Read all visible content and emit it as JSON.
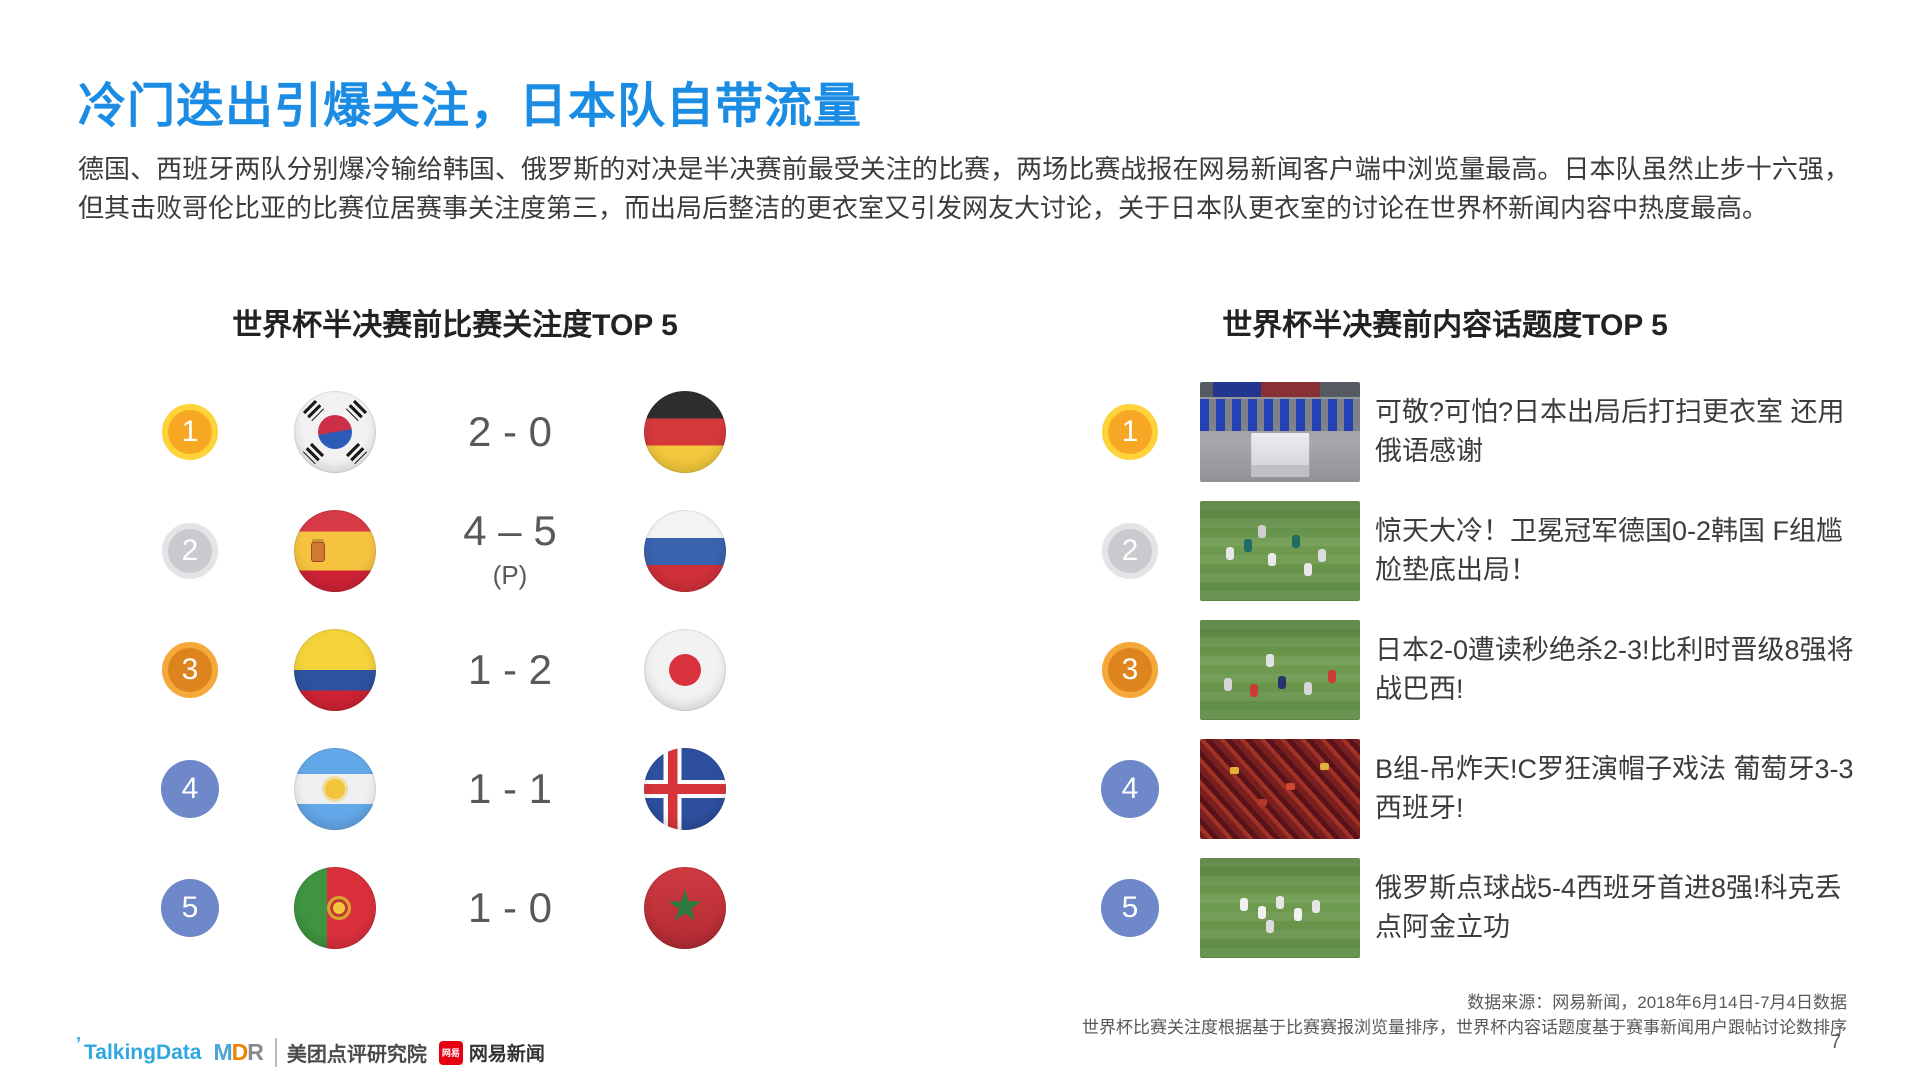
{
  "slide": {
    "title": "冷门迭出引爆关注，日本队自带流量",
    "paragraph": "德国、西班牙两队分别爆冷输给韩国、俄罗斯的对决是半决赛前最受关注的比赛，两场比赛战报在网易新闻客户端中浏览量最高。日本队虽然止步十六强，但其击败哥伦比亚的比赛位居赛事关注度第三，而出局后整洁的更衣室又引发网友大讨论，关于日本队更衣室的讨论在世界杯新闻内容中热度最高。",
    "page_number": "7"
  },
  "left_panel": {
    "title": "世界杯半决赛前比赛关注度TOP 5",
    "rows": [
      {
        "rank": "1",
        "medal": "gold",
        "home_flag": "south-korea",
        "score": "2 - 0",
        "note": "",
        "away_flag": "germany"
      },
      {
        "rank": "2",
        "medal": "silver",
        "home_flag": "spain",
        "score": "4 – 5",
        "note": "(P)",
        "away_flag": "russia"
      },
      {
        "rank": "3",
        "medal": "bronze",
        "home_flag": "colombia",
        "score": "1 - 2",
        "note": "",
        "away_flag": "japan"
      },
      {
        "rank": "4",
        "medal": "plain",
        "home_flag": "argentina",
        "score": "1 - 1",
        "note": "",
        "away_flag": "iceland"
      },
      {
        "rank": "5",
        "medal": "plain",
        "home_flag": "portugal",
        "score": "1 - 0",
        "note": "",
        "away_flag": "morocco"
      }
    ]
  },
  "right_panel": {
    "title": "世界杯半决赛前内容话题度TOP 5",
    "rows": [
      {
        "rank": "1",
        "medal": "gold",
        "thumbnail": "japan-locker-room",
        "headline": "可敬?可怕?日本出局后打扫更衣室 还用俄语感谢"
      },
      {
        "rank": "2",
        "medal": "silver",
        "thumbnail": "germany-korea-match",
        "headline": "惊天大冷！卫冕冠军德国0-2韩国 F组尴尬垫底出局！"
      },
      {
        "rank": "3",
        "medal": "bronze",
        "thumbnail": "japan-belgium-match",
        "headline": "日本2-0遭读秒绝杀2-3!比利时晋级8强将战巴西!"
      },
      {
        "rank": "4",
        "medal": "plain",
        "thumbnail": "portugal-spain-fans",
        "headline": "B组-吊炸天!C罗狂演帽子戏法 葡萄牙3-3西班牙!"
      },
      {
        "rank": "5",
        "medal": "plain",
        "thumbnail": "russia-spain-match",
        "headline": "俄罗斯点球战5-4西班牙首进8强!科克丢点阿金立功"
      }
    ]
  },
  "footer": {
    "source_line1": "数据来源：网易新闻，2018年6月14日-7月4日数据",
    "source_line2": "世界杯比赛关注度根据基于比赛赛报浏览量排序，世界杯内容话题度基于赛事新闻用户跟帖讨论数排序",
    "logos": {
      "talkingdata": "TalkingData",
      "mdr_m": "M",
      "mdr_d": "D",
      "mdr_r": "R",
      "meituan": "美团点评研究院",
      "netease_badge": "网易",
      "netease": "网易新闻"
    }
  },
  "colors": {
    "title-blue": "#1B8CE4",
    "medal-gold": "#F7A723",
    "medal-gold-ring": "#FFD33A",
    "medal-silver": "#C9CACD",
    "medal-silver-ring": "#E4E4E6",
    "medal-bronze": "#DD841F",
    "medal-bronze-ring": "#F5A93B",
    "ribbon-red": "#F4430F",
    "rank-blue": "#6F88C9"
  }
}
